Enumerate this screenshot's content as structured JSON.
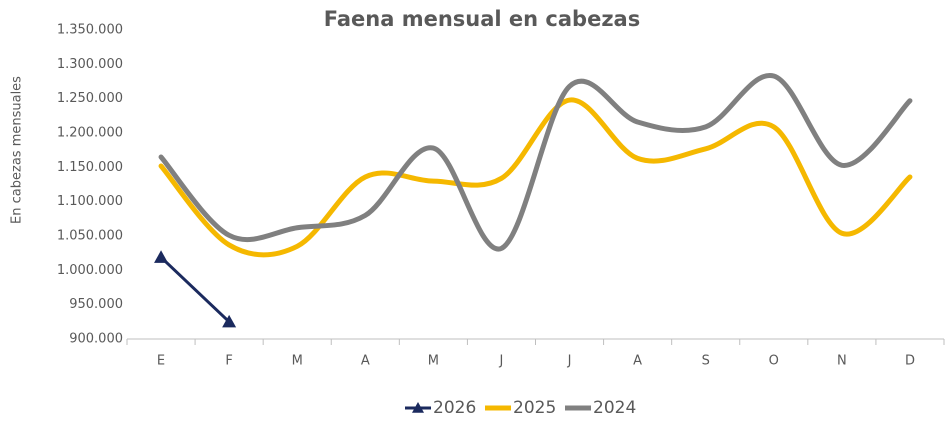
{
  "chart_data": {
    "type": "line",
    "title": "Faena mensual en cabezas",
    "y_axis_label": "En cabezas mensuales",
    "categories": [
      "E",
      "F",
      "M",
      "A",
      "M",
      "J",
      "J",
      "A",
      "S",
      "O",
      "N",
      "D"
    ],
    "series": [
      {
        "name": "2026",
        "color": "#1b2a5e",
        "marker": "triangle",
        "smooth": false,
        "values": [
          1019000,
          925000,
          null,
          null,
          null,
          null,
          null,
          null,
          null,
          null,
          null,
          null
        ]
      },
      {
        "name": "2025",
        "color": "#f5b800",
        "smooth": true,
        "values": [
          1152000,
          1037000,
          1035000,
          1136000,
          1130000,
          1134000,
          1248000,
          1163000,
          1177000,
          1209000,
          1054000,
          1136000
        ]
      },
      {
        "name": "2024",
        "color": "#808080",
        "smooth": true,
        "values": [
          1165000,
          1051000,
          1062000,
          1080000,
          1178000,
          1032000,
          1268000,
          1216000,
          1209000,
          1283000,
          1153000,
          1247000
        ]
      }
    ],
    "ylim": [
      900000,
      1350000
    ],
    "yticks": [
      {
        "value": 900000,
        "label": "900.000"
      },
      {
        "value": 950000,
        "label": "950.000"
      },
      {
        "value": 1000000,
        "label": "1.000.000"
      },
      {
        "value": 1050000,
        "label": "1.050.000"
      },
      {
        "value": 1100000,
        "label": "1.100.000"
      },
      {
        "value": 1150000,
        "label": "1.150.000"
      },
      {
        "value": 1200000,
        "label": "1.200.000"
      },
      {
        "value": 1250000,
        "label": "1.250.000"
      },
      {
        "value": 1300000,
        "label": "1.300.000"
      },
      {
        "value": 1350000,
        "label": "1.350.000"
      }
    ],
    "legend": "bottom"
  }
}
